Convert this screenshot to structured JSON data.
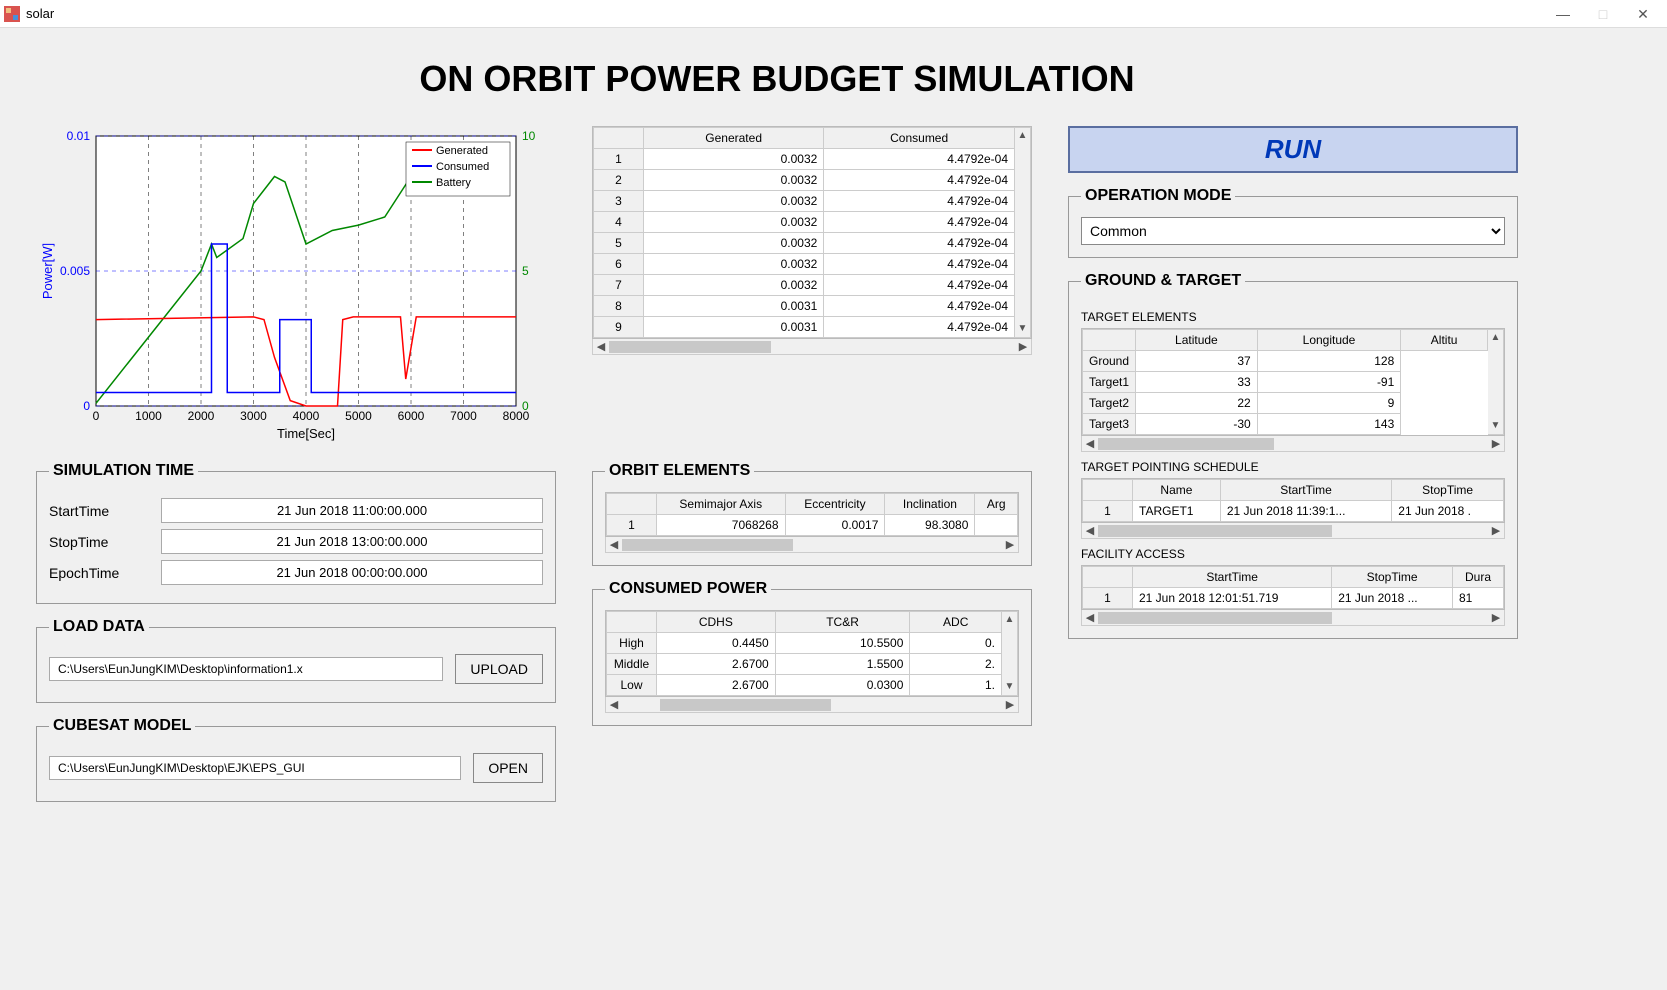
{
  "window": {
    "title": "solar"
  },
  "page_title": "ON ORBIT POWER BUDGET SIMULATION",
  "chart": {
    "xlabel": "Time[Sec]",
    "ylabel_left": "Power[W]",
    "xlim": [
      0,
      8000
    ],
    "xtick_step": 1000,
    "ylim_left": [
      0,
      0.01
    ],
    "ytick_left": [
      0,
      0.005,
      0.01
    ],
    "ylim_right": [
      0,
      10
    ],
    "ytick_right": [
      0,
      5,
      10
    ],
    "left_color": "#0000ff",
    "right_color": "#008800",
    "grid_color": "#000000",
    "grid_dash": "4,4",
    "background": "#ffffff",
    "legend": [
      {
        "label": "Generated",
        "color": "#ff0000"
      },
      {
        "label": "Consumed",
        "color": "#0000ff"
      },
      {
        "label": "Battery",
        "color": "#008800"
      }
    ],
    "series": {
      "generated": {
        "color": "#ff0000",
        "points": [
          [
            0,
            0.0032
          ],
          [
            3000,
            0.0033
          ],
          [
            3200,
            0.0032
          ],
          [
            3400,
            0.0018
          ],
          [
            3700,
            0.0002
          ],
          [
            4000,
            0
          ],
          [
            4600,
            0
          ],
          [
            4700,
            0.0032
          ],
          [
            4900,
            0.0033
          ],
          [
            5800,
            0.0033
          ],
          [
            5900,
            0.001
          ],
          [
            6100,
            0.0033
          ],
          [
            8000,
            0.0033
          ]
        ]
      },
      "consumed": {
        "color": "#0000ff",
        "points": [
          [
            0,
            0.0005
          ],
          [
            2200,
            0.0005
          ],
          [
            2200,
            0.006
          ],
          [
            2500,
            0.006
          ],
          [
            2500,
            0.0005
          ],
          [
            3500,
            0.0005
          ],
          [
            3500,
            0.0032
          ],
          [
            4100,
            0.0032
          ],
          [
            4100,
            0.0005
          ],
          [
            8000,
            0.0005
          ]
        ],
        "scale": "left"
      },
      "battery": {
        "color": "#008800",
        "points": [
          [
            0,
            0.1
          ],
          [
            2000,
            5
          ],
          [
            2200,
            6
          ],
          [
            2300,
            5.5
          ],
          [
            2800,
            6.2
          ],
          [
            3000,
            7.5
          ],
          [
            3400,
            8.5
          ],
          [
            3600,
            8.3
          ],
          [
            4000,
            6
          ],
          [
            4500,
            6.5
          ],
          [
            5000,
            6.7
          ],
          [
            5500,
            7
          ],
          [
            6000,
            8.5
          ],
          [
            6200,
            9.2
          ],
          [
            6500,
            9.7
          ]
        ],
        "scale": "right"
      }
    }
  },
  "power_table": {
    "headers": [
      "Generated",
      "Consumed"
    ],
    "rows": [
      [
        "1",
        "0.0032",
        "4.4792e-04"
      ],
      [
        "2",
        "0.0032",
        "4.4792e-04"
      ],
      [
        "3",
        "0.0032",
        "4.4792e-04"
      ],
      [
        "4",
        "0.0032",
        "4.4792e-04"
      ],
      [
        "5",
        "0.0032",
        "4.4792e-04"
      ],
      [
        "6",
        "0.0032",
        "4.4792e-04"
      ],
      [
        "7",
        "0.0032",
        "4.4792e-04"
      ],
      [
        "8",
        "0.0031",
        "4.4792e-04"
      ],
      [
        "9",
        "0.0031",
        "4.4792e-04"
      ]
    ]
  },
  "sim_time": {
    "legend": "SIMULATION TIME",
    "start_label": "StartTime",
    "start_val": "21 Jun 2018 11:00:00.000",
    "stop_label": "StopTime",
    "stop_val": "21 Jun 2018 13:00:00.000",
    "epoch_label": "EpochTime",
    "epoch_val": "21 Jun 2018 00:00:00.000"
  },
  "load_data": {
    "legend": "LOAD DATA",
    "path": "C:\\Users\\EunJungKIM\\Desktop\\information1.x",
    "btn": "UPLOAD"
  },
  "cubesat": {
    "legend": "CUBESAT MODEL",
    "path": "C:\\Users\\EunJungKIM\\Desktop\\EJK\\EPS_GUI",
    "btn": "OPEN"
  },
  "orbit": {
    "legend": "ORBIT ELEMENTS",
    "headers": [
      "Semimajor Axis",
      "Eccentricity",
      "Inclination",
      "Arg"
    ],
    "rows": [
      [
        "1",
        "7068268",
        "0.0017",
        "98.3080",
        ""
      ]
    ]
  },
  "consumed": {
    "legend": "CONSUMED POWER",
    "cols": [
      "CDHS",
      "TC&R",
      "ADC"
    ],
    "rows": [
      [
        "High",
        "0.4450",
        "10.5500",
        "0."
      ],
      [
        "Middle",
        "2.6700",
        "1.5500",
        "2."
      ],
      [
        "Low",
        "2.6700",
        "0.0300",
        "1."
      ]
    ]
  },
  "run_label": "RUN",
  "op_mode": {
    "legend": "OPERATION MODE",
    "value": "Common"
  },
  "ground_target": {
    "legend": "GROUND & TARGET",
    "elements_label": "TARGET ELEMENTS",
    "elements_cols": [
      "Latitude",
      "Longitude",
      "Altitu"
    ],
    "elements_rows": [
      [
        "Ground",
        "37",
        "128"
      ],
      [
        "Target1",
        "33",
        "-91"
      ],
      [
        "Target2",
        "22",
        "9"
      ],
      [
        "Target3",
        "-30",
        "143"
      ]
    ],
    "schedule_label": "TARGET POINTING SCHEDULE",
    "schedule_cols": [
      "Name",
      "StartTime",
      "StopTime"
    ],
    "schedule_rows": [
      [
        "1",
        "TARGET1",
        "21 Jun 2018 11:39:1...",
        "21 Jun 2018 ."
      ]
    ],
    "access_label": "FACILITY ACCESS",
    "access_cols": [
      "StartTime",
      "StopTime",
      "Dura"
    ],
    "access_rows": [
      [
        "1",
        "21 Jun 2018 12:01:51.719",
        "21 Jun 2018 ...",
        "81"
      ]
    ]
  }
}
